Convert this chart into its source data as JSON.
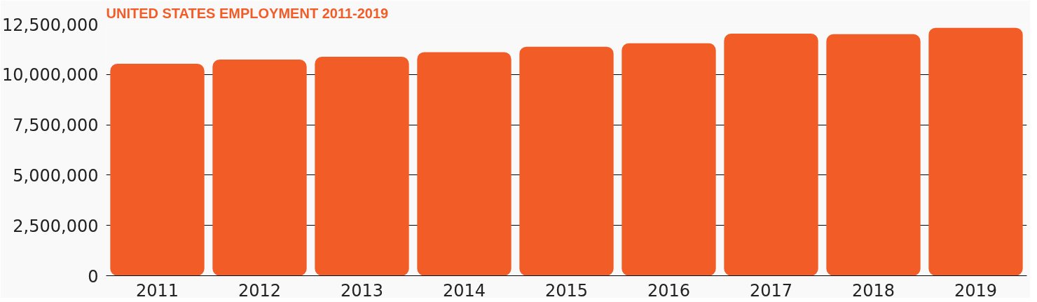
{
  "chart_data": {
    "type": "bar",
    "title": "UNITED STATES EMPLOYMENT 2011-2019",
    "categories": [
      "2011",
      "2012",
      "2013",
      "2014",
      "2015",
      "2016",
      "2017",
      "2018",
      "2019"
    ],
    "values": [
      10530000,
      10740000,
      10880000,
      11110000,
      11380000,
      11550000,
      12030000,
      12000000,
      12320000
    ],
    "color": "#f25c27",
    "ylim": [
      0,
      12500000
    ],
    "yticks": [
      {
        "value": 0,
        "label": "0"
      },
      {
        "value": 2500000,
        "label": "2,500,000"
      },
      {
        "value": 5000000,
        "label": "5,000,000"
      },
      {
        "value": 7500000,
        "label": "7,500,000"
      },
      {
        "value": 10000000,
        "label": "10,000,000"
      },
      {
        "value": 12500000,
        "label": "12,500,000"
      }
    ],
    "grid": "y"
  }
}
